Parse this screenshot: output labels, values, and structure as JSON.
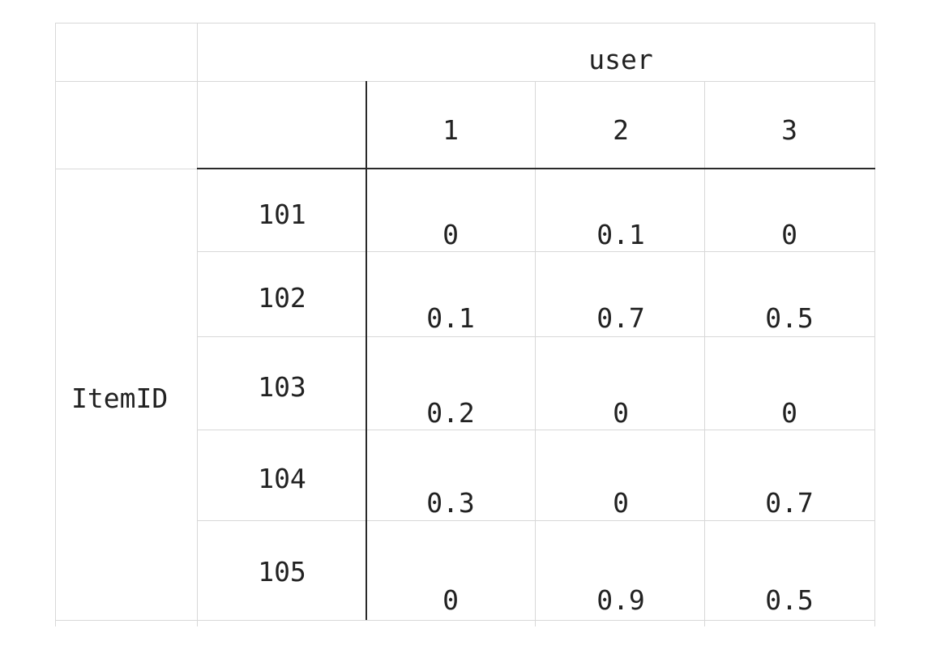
{
  "table": {
    "column_header": "user",
    "row_header": "ItemID",
    "user_ids": [
      "1",
      "2",
      "3"
    ],
    "rows": [
      {
        "item": "101",
        "values": [
          "0",
          "0.1",
          "0"
        ]
      },
      {
        "item": "102",
        "values": [
          "0.1",
          "0.7",
          "0.5"
        ]
      },
      {
        "item": "103",
        "values": [
          "0.2",
          "0",
          "0"
        ]
      },
      {
        "item": "104",
        "values": [
          "0.3",
          "0",
          "0.7"
        ]
      },
      {
        "item": "105",
        "values": [
          "0",
          "0.9",
          "0.5"
        ]
      }
    ]
  }
}
